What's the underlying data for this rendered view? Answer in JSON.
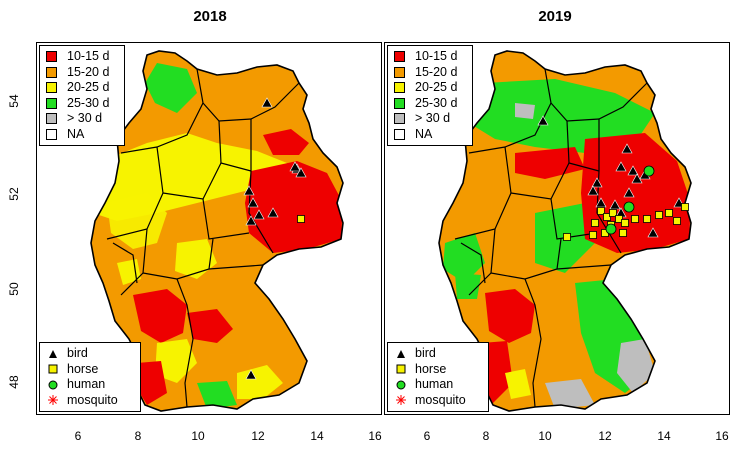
{
  "panels": [
    {
      "title": "2018",
      "legend": {
        "classes": [
          {
            "label": "10-15 d",
            "color": "#ee0000"
          },
          {
            "label": "15-20 d",
            "color": "#f39a00"
          },
          {
            "label": "20-25 d",
            "color": "#f7f300"
          },
          {
            "label": "25-30 d",
            "color": "#22dd22"
          },
          {
            "label": "> 30 d",
            "color": "#bebebe"
          },
          {
            "label": "NA",
            "color": "#ffffff"
          }
        ],
        "cases": [
          {
            "label": "bird",
            "symbol": "triangle-icon"
          },
          {
            "label": "horse",
            "symbol": "square-icon"
          },
          {
            "label": "human",
            "symbol": "circle-icon"
          },
          {
            "label": "mosquito",
            "symbol": "asterisk-icon"
          }
        ]
      }
    },
    {
      "title": "2019",
      "legend": {
        "classes": [
          {
            "label": "10-15 d",
            "color": "#ee0000"
          },
          {
            "label": "15-20 d",
            "color": "#f39a00"
          },
          {
            "label": "20-25 d",
            "color": "#f7f300"
          },
          {
            "label": "25-30 d",
            "color": "#22dd22"
          },
          {
            "label": "> 30 d",
            "color": "#bebebe"
          },
          {
            "label": "NA",
            "color": "#ffffff"
          }
        ],
        "cases": [
          {
            "label": "bird",
            "symbol": "triangle-icon"
          },
          {
            "label": "horse",
            "symbol": "square-icon"
          },
          {
            "label": "human",
            "symbol": "circle-icon"
          },
          {
            "label": "mosquito",
            "symbol": "asterisk-icon"
          }
        ]
      }
    }
  ],
  "axes": {
    "x_ticks": [
      "6",
      "8",
      "10",
      "12",
      "14",
      "16"
    ],
    "y_ticks": [
      "48",
      "50",
      "52",
      "54"
    ]
  }
}
